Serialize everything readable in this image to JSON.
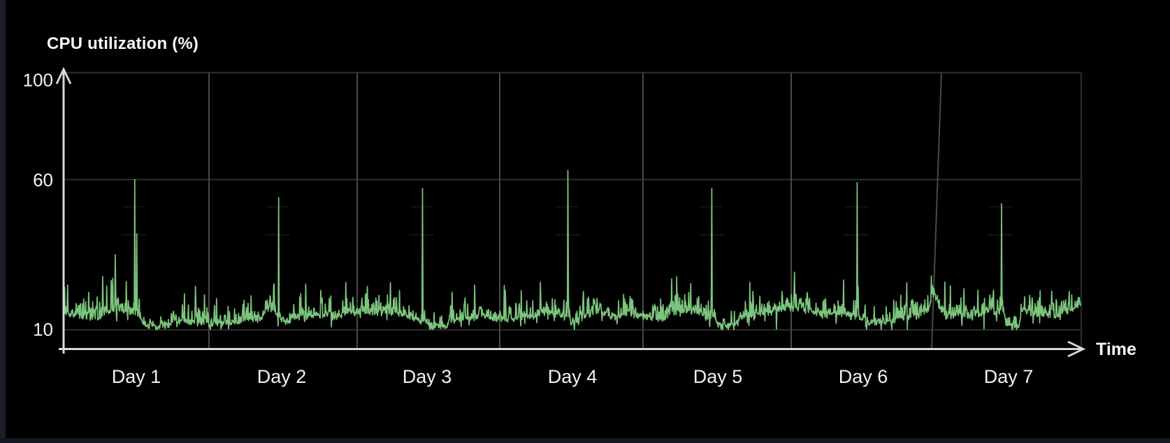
{
  "window": {
    "background": "#000000",
    "edge_strip_color": "#1b1f27"
  },
  "chart_data": {
    "type": "line",
    "title": "CPU utilization (%)",
    "xlabel": "Time",
    "ylabel": "CPU utilization (%)",
    "x_categories": [
      "Day 1",
      "Day 2",
      "Day 3",
      "Day 4",
      "Day 5",
      "Day 6",
      "Day 7"
    ],
    "y_tick_labels": [
      "100",
      "60",
      "10"
    ],
    "y_ticks": [
      100,
      60,
      10
    ],
    "ylim": [
      0,
      100
    ],
    "grid": {
      "vertical": "one line per day boundary",
      "horizontal": "lines at 10, 60 and 100"
    },
    "legend": "none",
    "style": "hand-drawn sketch, dark theme",
    "colors": {
      "series_green": "#7cc57d",
      "axis": "#d4dade",
      "grid_vertical": "#474a47",
      "grid_horizontal": "#2b2d2b",
      "plot_border": "#272927",
      "text": "#f1f2f3"
    },
    "series": [
      {
        "name": "CPU utilization",
        "baseline_pct": {
          "typical_low": 12.5,
          "typical_high": 18,
          "frequent_needles_to": 28
        },
        "points_per_day": 290,
        "days": [
          {
            "label": "Day 1",
            "peak_pct": 60,
            "peak_pos": 0.49,
            "features": [
              {
                "type": "spike",
                "pos": 0.355,
                "pct": 35
              },
              {
                "type": "spike",
                "pos": 0.505,
                "pct": 42
              },
              {
                "type": "hump",
                "start": 0.0,
                "end": 0.2,
                "amount": 1.2
              },
              {
                "type": "hump",
                "start": 0.26,
                "end": 0.48,
                "amount": 2.5
              },
              {
                "type": "dip",
                "start": 0.52,
                "end": 0.75,
                "level": 11.0
              }
            ]
          },
          {
            "label": "Day 2",
            "peak_pct": 54,
            "peak_pos": 0.48,
            "features": [
              {
                "type": "hump",
                "start": 0.0,
                "end": 0.34,
                "amount": -1.3
              },
              {
                "type": "hump",
                "start": 0.36,
                "end": 0.47,
                "amount": 3.0
              },
              {
                "type": "dip",
                "start": 0.495,
                "end": 0.57,
                "level": 12.4
              }
            ]
          },
          {
            "label": "Day 3",
            "peak_pct": 57,
            "peak_pos": 0.47,
            "features": [
              {
                "type": "hump",
                "start": 0.0,
                "end": 0.2,
                "amount": -0.8
              },
              {
                "type": "dip",
                "start": 0.485,
                "end": 0.66,
                "level": 10.9
              },
              {
                "type": "hump",
                "start": 0.7,
                "end": 0.97,
                "amount": 1.2
              }
            ]
          },
          {
            "label": "Day 4",
            "peak_pct": 63,
            "peak_pos": 0.47,
            "features": [
              {
                "type": "hump",
                "start": 0.24,
                "end": 0.43,
                "amount": 1.6
              },
              {
                "type": "dip",
                "start": 0.48,
                "end": 0.555,
                "level": 12.0
              },
              {
                "type": "hump",
                "start": 0.58,
                "end": 0.76,
                "amount": 2.2
              }
            ]
          },
          {
            "label": "Day 5",
            "peak_pct": 57,
            "peak_pos": 0.46,
            "features": [
              {
                "type": "hump",
                "start": 0.14,
                "end": 0.42,
                "amount": 2.6
              },
              {
                "type": "dip",
                "start": 0.475,
                "end": 0.66,
                "level": 11.3
              },
              {
                "type": "spike",
                "pos": 0.905,
                "pct": 10.2
              },
              {
                "type": "hump",
                "start": 0.78,
                "end": 1.0,
                "amount": 1.4
              }
            ]
          },
          {
            "label": "Day 6",
            "peak_pct": 59,
            "peak_pos": 0.46,
            "features": [
              {
                "type": "hump",
                "start": 0.0,
                "end": 0.3,
                "amount": 1.0
              },
              {
                "type": "dip",
                "start": 0.5,
                "end": 0.73,
                "level": 12.3
              },
              {
                "type": "hump",
                "start": 0.86,
                "end": 1.0,
                "amount": 9.0
              }
            ]
          },
          {
            "label": "Day 7",
            "peak_pct": 52,
            "peak_pos": 0.45,
            "features": [
              {
                "type": "hump",
                "start": 0.0,
                "end": 0.07,
                "amount": 7.0
              },
              {
                "type": "spike",
                "pos": 0.33,
                "pct": 10.3
              },
              {
                "type": "dip",
                "start": 0.47,
                "end": 0.59,
                "level": 11.4
              },
              {
                "type": "hump",
                "start": 0.82,
                "end": 1.0,
                "amount": 3.0
              }
            ]
          }
        ]
      }
    ]
  }
}
